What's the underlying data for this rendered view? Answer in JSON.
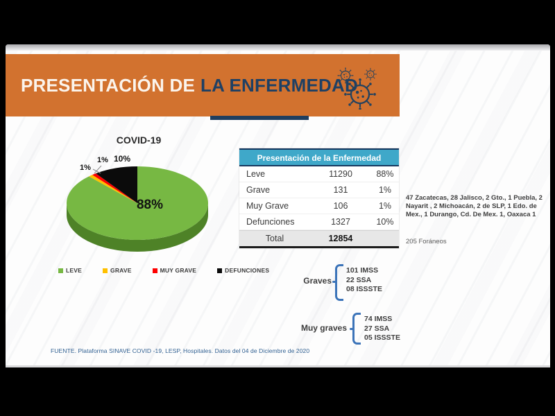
{
  "colors": {
    "banner_bg": "#d2722f",
    "navy": "#1e4064",
    "accent_bar": "#1f3e5f",
    "table_header_bg": "#3fa8c9",
    "table_border_dark": "#17375e",
    "total_row_bg": "#e7e7e7",
    "brace_blue": "#3c74b9",
    "footer_text": "#2f5f91",
    "pie_side_green": "#4e8227",
    "virus_icon": "#24425e"
  },
  "banner": {
    "title_regular": "PRESENTACIÓN DE",
    "title_bold": "LA ENFERMEDAD"
  },
  "chart_data": {
    "type": "pie",
    "style": "3d",
    "title": "COVID-19",
    "start_angle_deg": 0,
    "direction": "clockwise",
    "legend_position": "bottom",
    "total": 12854,
    "slices": [
      {
        "name": "LEVE",
        "count": 11290,
        "pct": 88,
        "pct_label": "88%",
        "color": "#77b843"
      },
      {
        "name": "GRAVE",
        "count": 131,
        "pct": 1,
        "pct_label": "1%",
        "color": "#ffc000"
      },
      {
        "name": "MUY GRAVE",
        "count": 106,
        "pct": 1,
        "pct_label": "1%",
        "color": "#fe0000"
      },
      {
        "name": "DEFUNCIONES",
        "count": 1327,
        "pct": 10,
        "pct_label": "10%",
        "color": "#0b0b0b"
      }
    ]
  },
  "table": {
    "title": "Presentación de la Enfermedad",
    "rows": [
      {
        "label": "Leve",
        "value": "11290",
        "pct": "88%"
      },
      {
        "label": "Grave",
        "value": "131",
        "pct": "1%"
      },
      {
        "label": "Muy Grave",
        "value": "106",
        "pct": "1%"
      },
      {
        "label": "Defunciones",
        "value": "1327",
        "pct": "10%"
      }
    ],
    "total_label": "Total",
    "total_value": "12854"
  },
  "notes": {
    "states": "47 Zacatecas, 28 Jalisco, 2 Gto., 1 Puebla, 2 Nayarit , 2 Michoacán, 2 de SLP, 1 Edo. de Mex., 1 Durango, Cd. De Mex. 1, Oaxaca 1",
    "foraneos": "205 Foráneos"
  },
  "breakdowns": {
    "graves": {
      "label": "Graves",
      "items": [
        "101 IMSS",
        "22 SSA",
        "08 ISSSTE"
      ]
    },
    "muy_graves": {
      "label": "Muy graves",
      "items": [
        "74 IMSS",
        "27 SSA",
        "05 ISSSTE"
      ]
    }
  },
  "footer": {
    "source": "FUENTE. Plataforma SINAVE COVID -19, LESP, Hospitales. Datos del 04 de Diciembre de 2020"
  }
}
